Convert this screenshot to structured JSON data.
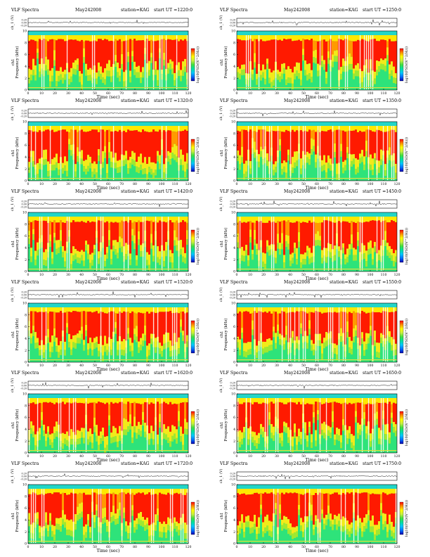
{
  "palette": {
    "colorbar": [
      "#0000b0",
      "#0070ff",
      "#00c8ff",
      "#00e0a0",
      "#40e040",
      "#c8f040",
      "#ffff00",
      "#ff9000",
      "#ff0000"
    ],
    "spectrum_base": "#2ee37a",
    "band_top": "#22d6c8",
    "signal": "#000000"
  },
  "chart_data": [
    {
      "type": "heatmap",
      "title_left": "VLF Spectra",
      "date": "May242008",
      "station": "station=KAG",
      "start_ut": "start UT =1220:0",
      "trace_ylabel": "ch_1 (V)",
      "trace_ticks": [
        "0.20",
        "0.00",
        "-0.20"
      ],
      "ylabel_line1": "ch1",
      "ylabel_line2": "Frequency (kHz)",
      "yticks": [
        "0",
        "2",
        "4",
        "6",
        "8",
        "10"
      ],
      "xticks": [
        "0",
        "10",
        "20",
        "30",
        "40",
        "50",
        "60",
        "70",
        "80",
        "90",
        "100",
        "110",
        "120"
      ],
      "xlabel": "Time (sec)",
      "colorbar_label": "log10(PSD/(V^2/Hz))",
      "x_range": [
        0,
        120
      ],
      "y_range": [
        0,
        10
      ]
    },
    {
      "type": "heatmap",
      "title_left": "VLF Spectra",
      "date": "May242008",
      "station": "station=KAG",
      "start_ut": "start UT =1250:0",
      "trace_ylabel": "ch_1 (V)",
      "trace_ticks": [
        "0.20",
        "0.00",
        "-0.20"
      ],
      "ylabel_line1": "ch1",
      "ylabel_line2": "Frequency (kHz)",
      "yticks": [
        "0",
        "2",
        "4",
        "6",
        "8",
        "10"
      ],
      "xticks": [
        "0",
        "10",
        "20",
        "30",
        "40",
        "50",
        "60",
        "70",
        "80",
        "90",
        "100",
        "110",
        "120"
      ],
      "xlabel": "Time (sec)",
      "colorbar_label": "log10(PSD/(V^2/Hz))",
      "x_range": [
        0,
        120
      ],
      "y_range": [
        0,
        10
      ]
    },
    {
      "type": "heatmap",
      "title_left": "VLF Spectra",
      "date": "May242008",
      "station": "station=KAG",
      "start_ut": "start UT =1320:0",
      "trace_ylabel": "ch_1 (V)",
      "trace_ticks": [
        "0.20",
        "0.00",
        "-0.20"
      ],
      "ylabel_line1": "ch1",
      "ylabel_line2": "Frequency (kHz)",
      "yticks": [
        "0",
        "2",
        "4",
        "6",
        "8",
        "10"
      ],
      "xticks": [
        "0",
        "10",
        "20",
        "30",
        "40",
        "50",
        "60",
        "70",
        "80",
        "90",
        "100",
        "110",
        "120"
      ],
      "xlabel": "Time (sec)",
      "colorbar_label": "log10(PSD/(V^2/Hz))",
      "x_range": [
        0,
        120
      ],
      "y_range": [
        0,
        10
      ]
    },
    {
      "type": "heatmap",
      "title_left": "VLF Spectra",
      "date": "May242008",
      "station": "station=KAG",
      "start_ut": "start UT =1350:0",
      "trace_ylabel": "ch_1 (V)",
      "trace_ticks": [
        "0.20",
        "0.00",
        "-0.20"
      ],
      "ylabel_line1": "ch1",
      "ylabel_line2": "Frequency (kHz)",
      "yticks": [
        "0",
        "2",
        "4",
        "6",
        "8",
        "10"
      ],
      "xticks": [
        "0",
        "10",
        "20",
        "30",
        "40",
        "50",
        "60",
        "70",
        "80",
        "90",
        "100",
        "110",
        "120"
      ],
      "xlabel": "Time (sec)",
      "colorbar_label": "log10(PSD/(V^2/Hz))",
      "x_range": [
        0,
        120
      ],
      "y_range": [
        0,
        10
      ]
    },
    {
      "type": "heatmap",
      "title_left": "VLF Spectra",
      "date": "May242008",
      "station": "station=KAG",
      "start_ut": "start UT =1420:0",
      "trace_ylabel": "ch_1 (V)",
      "trace_ticks": [
        "0.20",
        "0.00",
        "-0.20"
      ],
      "ylabel_line1": "ch1",
      "ylabel_line2": "Frequency (kHz)",
      "yticks": [
        "0",
        "2",
        "4",
        "6",
        "8",
        "10"
      ],
      "xticks": [
        "0",
        "10",
        "20",
        "30",
        "40",
        "50",
        "60",
        "70",
        "80",
        "90",
        "100",
        "110",
        "120"
      ],
      "xlabel": "Time (sec)",
      "colorbar_label": "log10(PSD/(V^2/Hz))",
      "x_range": [
        0,
        120
      ],
      "y_range": [
        0,
        10
      ]
    },
    {
      "type": "heatmap",
      "title_left": "VLF Spectra",
      "date": "May242008",
      "station": "station=KAG",
      "start_ut": "start UT =1450:0",
      "trace_ylabel": "ch_1 (V)",
      "trace_ticks": [
        "0.20",
        "0.00",
        "-0.20"
      ],
      "ylabel_line1": "ch1",
      "ylabel_line2": "Frequency (kHz)",
      "yticks": [
        "0",
        "2",
        "4",
        "6",
        "8",
        "10"
      ],
      "xticks": [
        "0",
        "10",
        "20",
        "30",
        "40",
        "50",
        "60",
        "70",
        "80",
        "90",
        "100",
        "110",
        "120"
      ],
      "xlabel": "Time (sec)",
      "colorbar_label": "log10(PSD/(V^2/Hz))",
      "x_range": [
        0,
        120
      ],
      "y_range": [
        0,
        10
      ]
    },
    {
      "type": "heatmap",
      "title_left": "VLF Spectra",
      "date": "May242008",
      "station": "station=KAG",
      "start_ut": "start UT =1520:0",
      "trace_ylabel": "ch_1 (V)",
      "trace_ticks": [
        "0.20",
        "0.00",
        "-0.20"
      ],
      "ylabel_line1": "ch1",
      "ylabel_line2": "Frequency (kHz)",
      "yticks": [
        "0",
        "2",
        "4",
        "6",
        "8",
        "10"
      ],
      "xticks": [
        "0",
        "10",
        "20",
        "30",
        "40",
        "50",
        "60",
        "70",
        "80",
        "90",
        "100",
        "110",
        "120"
      ],
      "xlabel": "Time (sec)",
      "colorbar_label": "log10(PSD/(V^2/Hz))",
      "x_range": [
        0,
        120
      ],
      "y_range": [
        0,
        10
      ]
    },
    {
      "type": "heatmap",
      "title_left": "VLF Spectra",
      "date": "May242008",
      "station": "station=KAG",
      "start_ut": "start UT =1550:0",
      "trace_ylabel": "ch_1 (V)",
      "trace_ticks": [
        "0.20",
        "0.00",
        "-0.20"
      ],
      "ylabel_line1": "ch1",
      "ylabel_line2": "Frequency (kHz)",
      "yticks": [
        "0",
        "2",
        "4",
        "6",
        "8",
        "10"
      ],
      "xticks": [
        "0",
        "10",
        "20",
        "30",
        "40",
        "50",
        "60",
        "70",
        "80",
        "90",
        "100",
        "110",
        "120"
      ],
      "xlabel": "Time (sec)",
      "colorbar_label": "log10(PSD/(V^2/Hz))",
      "x_range": [
        0,
        120
      ],
      "y_range": [
        0,
        10
      ]
    },
    {
      "type": "heatmap",
      "title_left": "VLF Spectra",
      "date": "May242008",
      "station": "station=KAG",
      "start_ut": "start UT =1620:0",
      "trace_ylabel": "ch_1 (V)",
      "trace_ticks": [
        "0.20",
        "0.00",
        "-0.20"
      ],
      "ylabel_line1": "ch1",
      "ylabel_line2": "Frequency (kHz)",
      "yticks": [
        "0",
        "2",
        "4",
        "6",
        "8",
        "10"
      ],
      "xticks": [
        "0",
        "10",
        "20",
        "30",
        "40",
        "50",
        "60",
        "70",
        "80",
        "90",
        "100",
        "110",
        "120"
      ],
      "xlabel": "Time (sec)",
      "colorbar_label": "log10(PSD/(V^2/Hz))",
      "x_range": [
        0,
        120
      ],
      "y_range": [
        0,
        10
      ]
    },
    {
      "type": "heatmap",
      "title_left": "VLF Spectra",
      "date": "May242008",
      "station": "station=KAG",
      "start_ut": "start UT =1650:0",
      "trace_ylabel": "ch_1 (V)",
      "trace_ticks": [
        "0.20",
        "0.00",
        "-0.20"
      ],
      "ylabel_line1": "ch1",
      "ylabel_line2": "Frequency (kHz)",
      "yticks": [
        "0",
        "2",
        "4",
        "6",
        "8",
        "10"
      ],
      "xticks": [
        "0",
        "10",
        "20",
        "30",
        "40",
        "50",
        "60",
        "70",
        "80",
        "90",
        "100",
        "110",
        "120"
      ],
      "xlabel": "Time (sec)",
      "colorbar_label": "log10(PSD/(V^2/Hz))",
      "x_range": [
        0,
        120
      ],
      "y_range": [
        0,
        10
      ]
    },
    {
      "type": "heatmap",
      "title_left": "VLF Spectra",
      "date": "May242008",
      "station": "station=KAG",
      "start_ut": "start UT =1720:0",
      "trace_ylabel": "ch_1 (V)",
      "trace_ticks": [
        "0.20",
        "0.00",
        "-0.20"
      ],
      "ylabel_line1": "ch1",
      "ylabel_line2": "Frequency (kHz)",
      "yticks": [
        "0",
        "2",
        "4",
        "6",
        "8",
        "10"
      ],
      "xticks": [
        "0",
        "10",
        "20",
        "30",
        "40",
        "50",
        "60",
        "70",
        "80",
        "90",
        "100",
        "110",
        "120"
      ],
      "xlabel": "Time (sec)",
      "colorbar_label": "log10(PSD/(V^2/Hz))",
      "x_range": [
        0,
        120
      ],
      "y_range": [
        0,
        10
      ]
    },
    {
      "type": "heatmap",
      "title_left": "VLF Spectra",
      "date": "May242008",
      "station": "station=KAG",
      "start_ut": "start UT =1750:0",
      "trace_ylabel": "ch_1 (V)",
      "trace_ticks": [
        "0.20",
        "0.00",
        "-0.20"
      ],
      "ylabel_line1": "ch1",
      "ylabel_line2": "Frequency (kHz)",
      "yticks": [
        "0",
        "2",
        "4",
        "6",
        "8",
        "10"
      ],
      "xticks": [
        "0",
        "10",
        "20",
        "30",
        "40",
        "50",
        "60",
        "70",
        "80",
        "90",
        "100",
        "110",
        "120"
      ],
      "xlabel": "Time (sec)",
      "colorbar_label": "log10(PSD/(V^2/Hz))",
      "x_range": [
        0,
        120
      ],
      "y_range": [
        0,
        10
      ]
    }
  ]
}
